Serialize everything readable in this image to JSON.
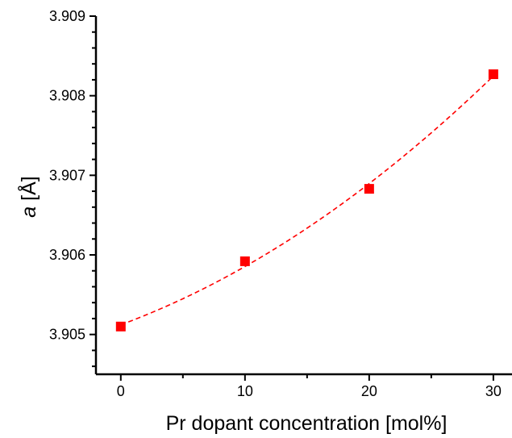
{
  "chart_data": {
    "type": "scatter",
    "title": "",
    "xlabel": "Pr dopant concentration [mol%]",
    "ylabel_italic": "a",
    "ylabel_rest": " [Å]",
    "xlim": [
      -2,
      31.5
    ],
    "ylim": [
      3.9045,
      3.909
    ],
    "xticks": [
      0,
      10,
      20,
      30
    ],
    "xtick_labels": [
      "0",
      "10",
      "20",
      "30"
    ],
    "yticks": [
      3.905,
      3.906,
      3.907,
      3.908,
      3.909
    ],
    "ytick_labels": [
      "3.905",
      "3.906",
      "3.907",
      "3.908",
      "3.909"
    ],
    "grid": false,
    "series": [
      {
        "marker": "square",
        "color": "#ff0000",
        "x": [
          0,
          10,
          20,
          30
        ],
        "y": [
          3.9051,
          3.90592,
          3.90683,
          3.90827
        ]
      }
    ],
    "fit": {
      "style": "dashed",
      "color": "#ff0000",
      "x_range": [
        0,
        30
      ]
    }
  }
}
